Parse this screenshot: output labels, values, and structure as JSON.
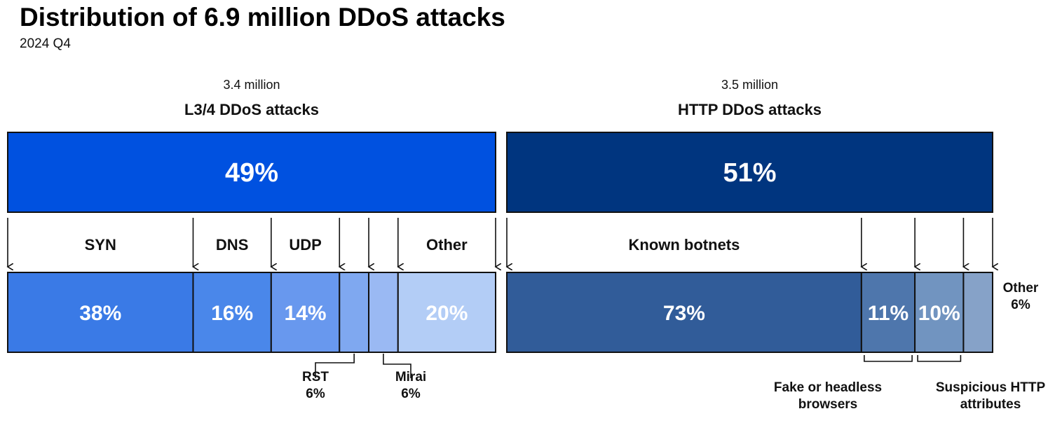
{
  "chart_data": {
    "type": "bar",
    "title": "Distribution of 6.9 million DDoS attacks",
    "subtitle": "2024 Q4",
    "groups": [
      {
        "name": "L3/4 DDoS attacks",
        "count_label": "3.4 million",
        "share": 49,
        "share_label": "49%",
        "color": "#0051E0",
        "segments": [
          {
            "name": "SYN",
            "value": 38,
            "label": "38%",
            "color": "#3A7AE6"
          },
          {
            "name": "DNS",
            "value": 16,
            "label": "16%",
            "color": "#4A87EA"
          },
          {
            "name": "UDP",
            "value": 14,
            "label": "14%",
            "color": "#6898EE"
          },
          {
            "name": "RST",
            "value": 6,
            "note_label": "6%",
            "color": "#7FA8F0"
          },
          {
            "name": "Mirai",
            "value": 6,
            "note_label": "6%",
            "color": "#9AB9F3"
          },
          {
            "name": "Other",
            "value": 20,
            "label": "20%",
            "color": "#B3CDF6"
          }
        ]
      },
      {
        "name": "HTTP DDoS attacks",
        "count_label": "3.5 million",
        "share": 51,
        "share_label": "51%",
        "color": "#00357F",
        "segments": [
          {
            "name": "Known botnets",
            "value": 73,
            "label": "73%",
            "color": "#315C99"
          },
          {
            "name": "Fake or headless browsers",
            "value": 11,
            "label": "11%",
            "color": "#4E76AC"
          },
          {
            "name": "Suspicious HTTP attributes",
            "value": 10,
            "label": "10%",
            "color": "#7194C0"
          },
          {
            "name": "Other",
            "value": 6,
            "note_label": "6%",
            "color": "#86A2C8"
          }
        ]
      }
    ]
  }
}
